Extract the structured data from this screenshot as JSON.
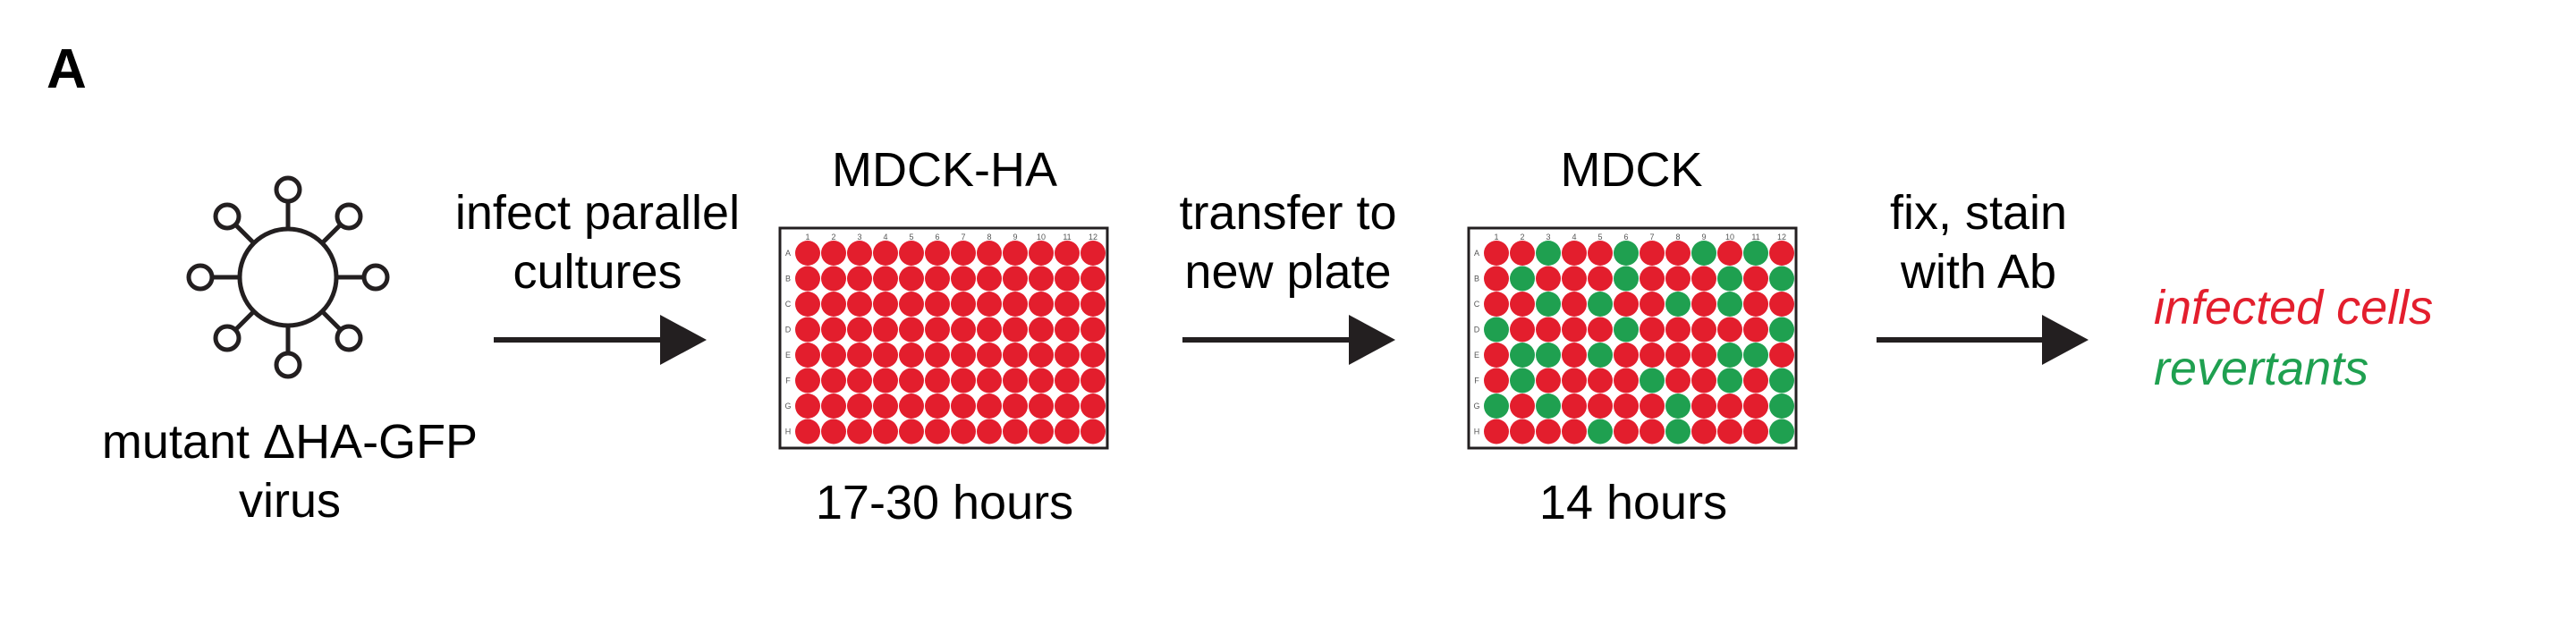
{
  "panel_label": "A",
  "virus": {
    "label_line1": "mutant ΔHA-GFP",
    "label_line2": "virus",
    "icon": "virus-icon"
  },
  "steps": [
    {
      "line1": "infect parallel",
      "line2": "cultures"
    },
    {
      "line1": "transfer to",
      "line2": "new plate"
    },
    {
      "line1": "fix, stain",
      "line2": "with Ab"
    }
  ],
  "plates": [
    {
      "title": "MDCK-HA",
      "duration": "17-30 hours",
      "grid": [
        "RRRRRRRRRRRR",
        "RRRRRRRRRRRR",
        "RRRRRRRRRRRR",
        "RRRRRRRRRRRR",
        "RRRRRRRRRRRR",
        "RRRRRRRRRRRR",
        "RRRRRRRRRRRR",
        "RRRRRRRRRRRR"
      ]
    },
    {
      "title": "MDCK",
      "duration": "14 hours",
      "grid": [
        "RRGRRGRRGRGR",
        "RGRRRGRRRGRG",
        "RRGRGRRGRGRR",
        "GRRRRGRRRRRG",
        "RGGRGRRRRGGR",
        "RGRRRRGRRGRG",
        "GRGRRRRGRRRG",
        "RRRRGRRGRRRG"
      ]
    }
  ],
  "plate_rows": [
    "A",
    "B",
    "C",
    "D",
    "E",
    "F",
    "G",
    "H"
  ],
  "plate_cols": [
    "1",
    "2",
    "3",
    "4",
    "5",
    "6",
    "7",
    "8",
    "9",
    "10",
    "11",
    "12"
  ],
  "legend": {
    "infected": "infected cells",
    "revertants": "revertants"
  },
  "colors": {
    "infected": "#e31e2d",
    "revertant": "#1fa050",
    "text": "#231f20"
  }
}
